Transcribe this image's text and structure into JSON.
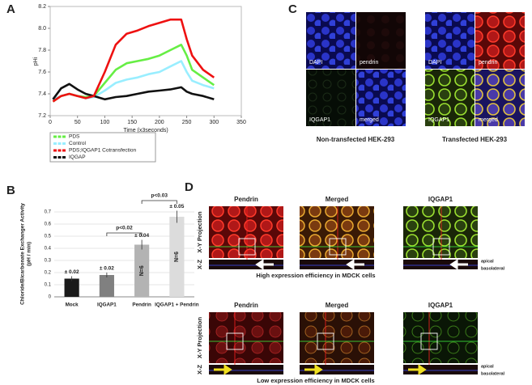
{
  "chart_data": [
    {
      "type": "line",
      "panel_label": "A",
      "xlabel": "Time (x3seconds)",
      "ylabel": "pHi",
      "x": [
        5,
        20,
        35,
        50,
        65,
        80,
        100,
        120,
        140,
        160,
        180,
        200,
        220,
        240,
        250,
        260,
        280,
        300
      ],
      "xlim": [
        0,
        350
      ],
      "xticks": [
        0,
        50,
        100,
        150,
        200,
        250,
        300,
        350
      ],
      "ylim": [
        7.2,
        8.2
      ],
      "yticks": [
        7.2,
        7.4,
        7.6,
        7.8,
        {
          "value": 8,
          "label": "8.0"
        },
        8.2
      ],
      "series": [
        {
          "name": "PDS",
          "color": "#66ee44",
          "legend_text_color": "#44dd22",
          "values": [
            7.33,
            7.38,
            7.4,
            7.38,
            7.37,
            7.38,
            7.5,
            7.62,
            7.68,
            7.7,
            7.72,
            7.75,
            7.8,
            7.85,
            7.75,
            7.62,
            7.55,
            7.48
          ]
        },
        {
          "name": "Control",
          "color": "#99eeff",
          "legend_text_color": "#77aacc",
          "values": [
            7.35,
            7.38,
            7.4,
            7.38,
            7.36,
            7.37,
            7.43,
            7.5,
            7.53,
            7.55,
            7.58,
            7.6,
            7.65,
            7.7,
            7.6,
            7.52,
            7.48,
            7.45
          ]
        },
        {
          "name": "PDS;IQGAP1 Cotransfection",
          "color": "#ee1111",
          "legend_text_color": "#ee1111",
          "values": [
            7.33,
            7.38,
            7.4,
            7.38,
            7.36,
            7.38,
            7.6,
            7.85,
            7.95,
            7.98,
            8.02,
            8.05,
            8.08,
            8.08,
            7.9,
            7.75,
            7.62,
            7.55
          ]
        },
        {
          "name": "IQGAP",
          "color": "#111111",
          "legend_text_color": "#2233cc",
          "values": [
            7.35,
            7.45,
            7.49,
            7.44,
            7.4,
            7.38,
            7.35,
            7.37,
            7.38,
            7.4,
            7.42,
            7.43,
            7.44,
            7.46,
            7.42,
            7.4,
            7.38,
            7.35
          ]
        }
      ]
    },
    {
      "type": "bar",
      "panel_label": "B",
      "ylabel": [
        "Chloride/Bicarbonate Exchanger Activity",
        "(pH / min)"
      ],
      "categories": [
        "Mock",
        "IQGAP1",
        "Pendrin",
        "IQGAP1 + Pendrin"
      ],
      "values": [
        0.15,
        0.18,
        0.43,
        0.66
      ],
      "errors": [
        0.02,
        0.02,
        0.04,
        0.05
      ],
      "error_labels": [
        "± 0.02",
        "± 0.02",
        "± 0.04",
        "± 0.05"
      ],
      "n_labels": [
        null,
        null,
        "N=6",
        "N=6"
      ],
      "significance": [
        "p<0.02",
        "p<0.03"
      ],
      "colors": [
        "#1a1a1a",
        "#808080",
        "#b3b3b3",
        "#dcdcdc"
      ],
      "ylim": [
        0,
        0.7
      ],
      "yticks": [
        0,
        0.1,
        0.2,
        0.3,
        0.4,
        0.5,
        0.6,
        0.7
      ]
    }
  ],
  "panel_c": {
    "label": "C",
    "images": [
      {
        "quadrants": [
          "DAPI",
          "pendrin",
          "IQGAP1",
          "merged"
        ],
        "caption": "Non-transfected HEK-293"
      },
      {
        "quadrants": [
          "DAPI",
          "pendrin",
          "IQGAP1",
          "merged"
        ],
        "caption": "Transfected HEK-293"
      }
    ]
  },
  "panel_d": {
    "label": "D",
    "rows": [
      {
        "headers": [
          "Pendrin",
          "Merged",
          "IQGAP1"
        ],
        "xy_label": "X-Y Projection",
        "xz_label": "X-Z",
        "apical": "apical",
        "basolateral": "basolateral",
        "caption": "High expression efficiency in MDCK cells"
      },
      {
        "headers": [
          "Pendrin",
          "Merged",
          "IQGAP1"
        ],
        "xy_label": "X-Y Projection",
        "xz_label": "X-Z",
        "apical": "apical",
        "basolateral": "basolateral",
        "caption": "Low expression efficiency in MDCK cells"
      }
    ]
  }
}
